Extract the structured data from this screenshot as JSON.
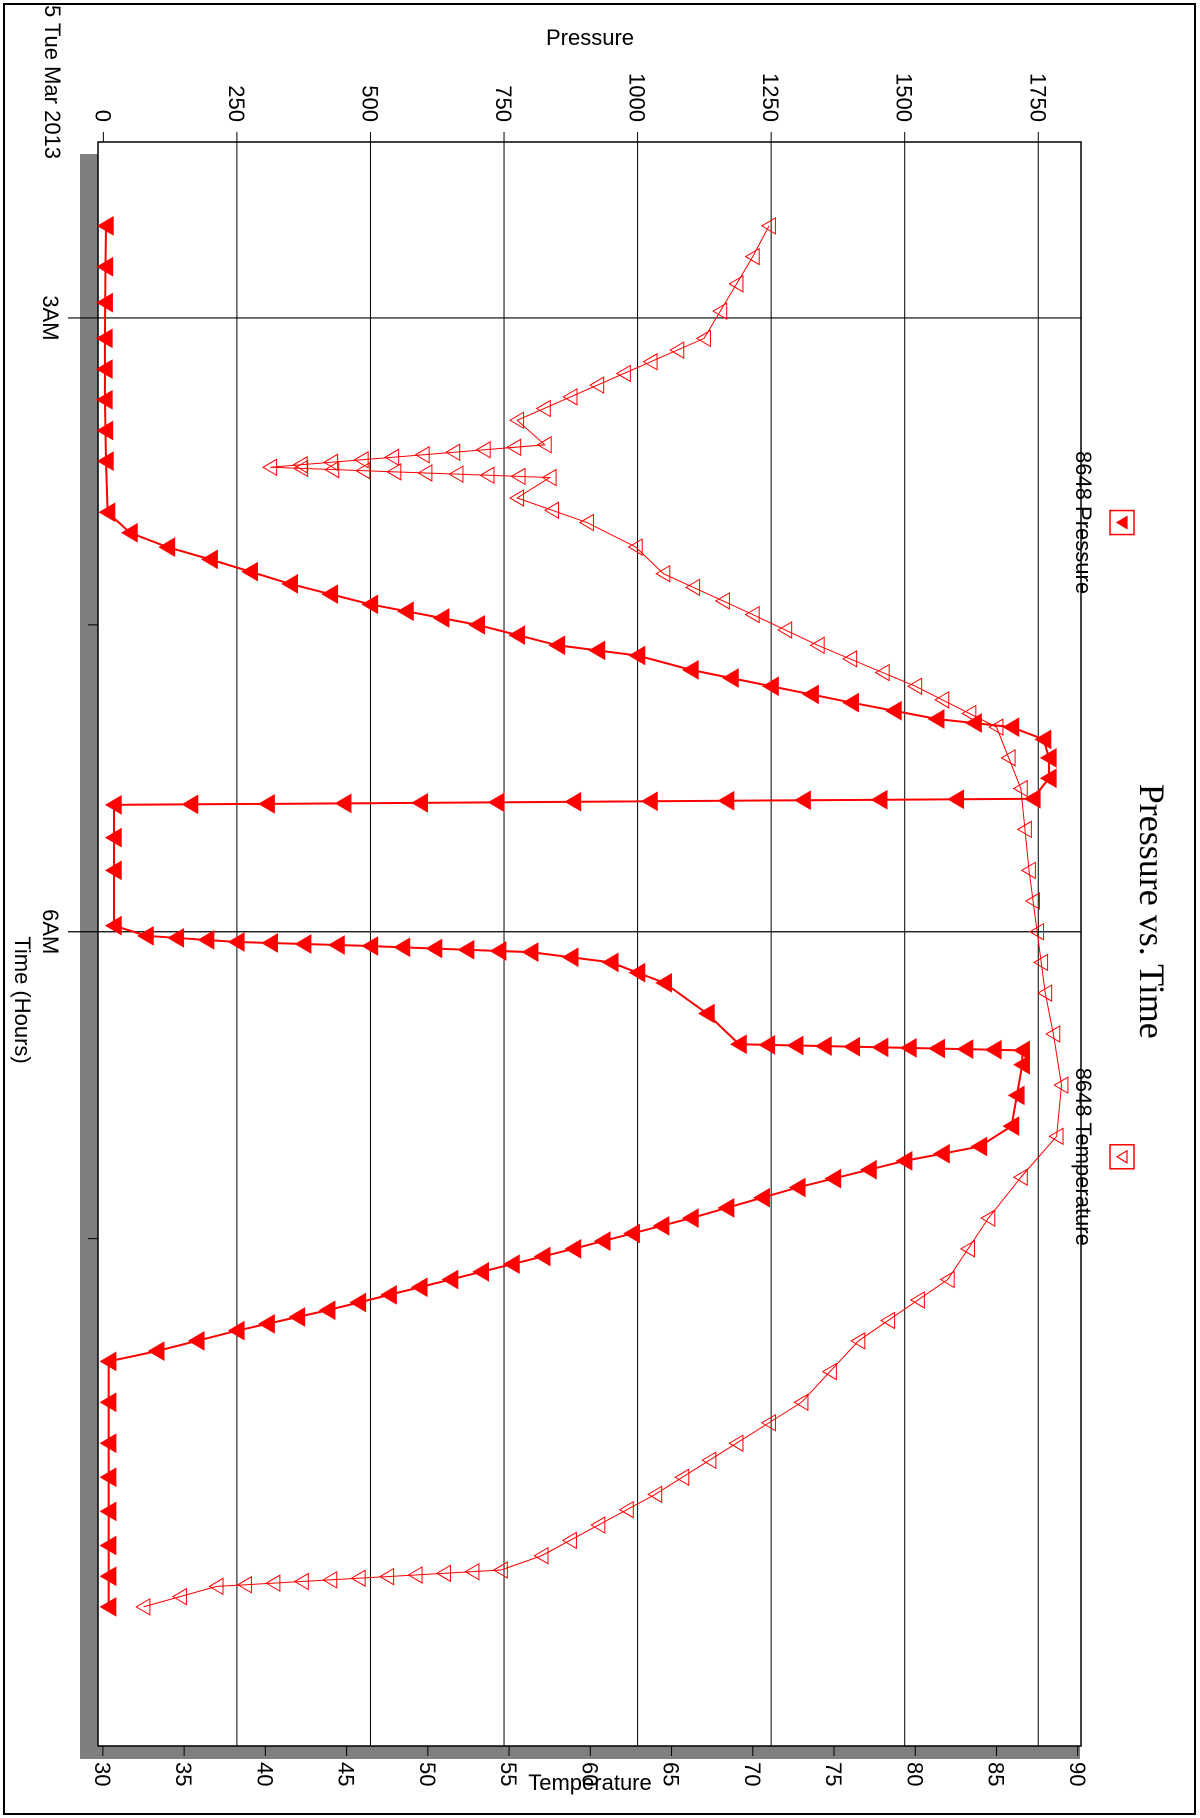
{
  "chart_data": {
    "type": "line",
    "title": "Pressure vs. Time",
    "xlabel": "Time (Hours)",
    "date_label": "5 Tue Mar 2013",
    "x_ticks": [
      {
        "label": "3AM",
        "hours": 3
      },
      {
        "label": "6AM",
        "hours": 6
      }
    ],
    "xlim_hours": [
      2.14,
      9.98
    ],
    "pressure_axis": {
      "label": "Pressure",
      "ticks": [
        0,
        250,
        500,
        750,
        1000,
        1250,
        1500,
        1750
      ],
      "ylim": [
        -10,
        1830
      ]
    },
    "temperature_axis": {
      "label": "Temperature",
      "ticks": [
        30,
        35,
        40,
        45,
        50,
        55,
        60,
        65,
        70,
        75,
        80,
        85,
        90
      ],
      "ylim": [
        29.7,
        90.2
      ]
    },
    "legend": [
      {
        "name": "8648 Pressure",
        "marker": "filled-triangle",
        "placement": "top-left"
      },
      {
        "name": "8648 Temperature",
        "marker": "open-triangle",
        "placement": "top-right"
      }
    ],
    "series": [
      {
        "name": "8648 Pressure",
        "axis": "pressure",
        "color": "#ff0000",
        "marker": "filled-triangle",
        "points": [
          [
            2.55,
            5
          ],
          [
            2.75,
            4
          ],
          [
            3.1,
            3
          ],
          [
            3.4,
            3
          ],
          [
            3.7,
            5
          ],
          [
            3.95,
            8
          ],
          [
            4.05,
            50
          ],
          [
            4.12,
            120
          ],
          [
            4.18,
            200
          ],
          [
            4.3,
            350
          ],
          [
            4.4,
            500
          ],
          [
            4.5,
            700
          ],
          [
            4.6,
            850
          ],
          [
            4.65,
            1000
          ],
          [
            4.72,
            1100
          ],
          [
            4.8,
            1250
          ],
          [
            4.88,
            1400
          ],
          [
            4.92,
            1480
          ],
          [
            4.96,
            1560
          ],
          [
            5.0,
            1700
          ],
          [
            5.06,
            1760
          ],
          [
            5.15,
            1770
          ],
          [
            5.25,
            1770
          ],
          [
            5.35,
            1740
          ],
          [
            5.38,
            20
          ],
          [
            5.7,
            20
          ],
          [
            5.97,
            20
          ],
          [
            6.02,
            80
          ],
          [
            6.05,
            250
          ],
          [
            6.07,
            500
          ],
          [
            6.1,
            800
          ],
          [
            6.15,
            950
          ],
          [
            6.25,
            1050
          ],
          [
            6.4,
            1130
          ],
          [
            6.55,
            1190
          ],
          [
            6.58,
            1720
          ],
          [
            6.65,
            1720
          ],
          [
            6.8,
            1710
          ],
          [
            6.95,
            1700
          ],
          [
            7.05,
            1640
          ],
          [
            7.12,
            1500
          ],
          [
            7.25,
            1300
          ],
          [
            7.4,
            1100
          ],
          [
            7.55,
            880
          ],
          [
            7.7,
            650
          ],
          [
            7.85,
            420
          ],
          [
            7.95,
            250
          ],
          [
            8.05,
            100
          ],
          [
            8.1,
            10
          ],
          [
            8.5,
            10
          ],
          [
            9.0,
            10
          ],
          [
            9.3,
            10
          ]
        ]
      },
      {
        "name": "8648 Temperature",
        "axis": "temperature",
        "color": "#ff0000",
        "marker": "open-triangle",
        "points": [
          [
            2.55,
            71
          ],
          [
            2.7,
            70
          ],
          [
            3.1,
            67
          ],
          [
            3.5,
            55.5
          ],
          [
            3.62,
            57.2
          ],
          [
            3.73,
            40.3
          ],
          [
            3.78,
            57.5
          ],
          [
            3.88,
            55.5
          ],
          [
            4.0,
            59.8
          ],
          [
            4.12,
            62.8
          ],
          [
            4.25,
            64.5
          ],
          [
            4.45,
            70.0
          ],
          [
            4.6,
            74.0
          ],
          [
            4.8,
            80.0
          ],
          [
            5.0,
            85.0
          ],
          [
            5.3,
            86.5
          ],
          [
            5.7,
            87.0
          ],
          [
            6.0,
            87.5
          ],
          [
            6.3,
            88.0
          ],
          [
            6.5,
            88.5
          ],
          [
            6.75,
            89.0
          ],
          [
            7.0,
            88.7
          ],
          [
            7.2,
            86.5
          ],
          [
            7.4,
            84.5
          ],
          [
            7.7,
            82.0
          ],
          [
            8.0,
            76.5
          ],
          [
            8.3,
            73.0
          ],
          [
            8.5,
            69.0
          ],
          [
            8.75,
            64.0
          ],
          [
            9.05,
            57.0
          ],
          [
            9.12,
            54.5
          ],
          [
            9.2,
            37.0
          ],
          [
            9.3,
            32.5
          ]
        ]
      }
    ]
  }
}
